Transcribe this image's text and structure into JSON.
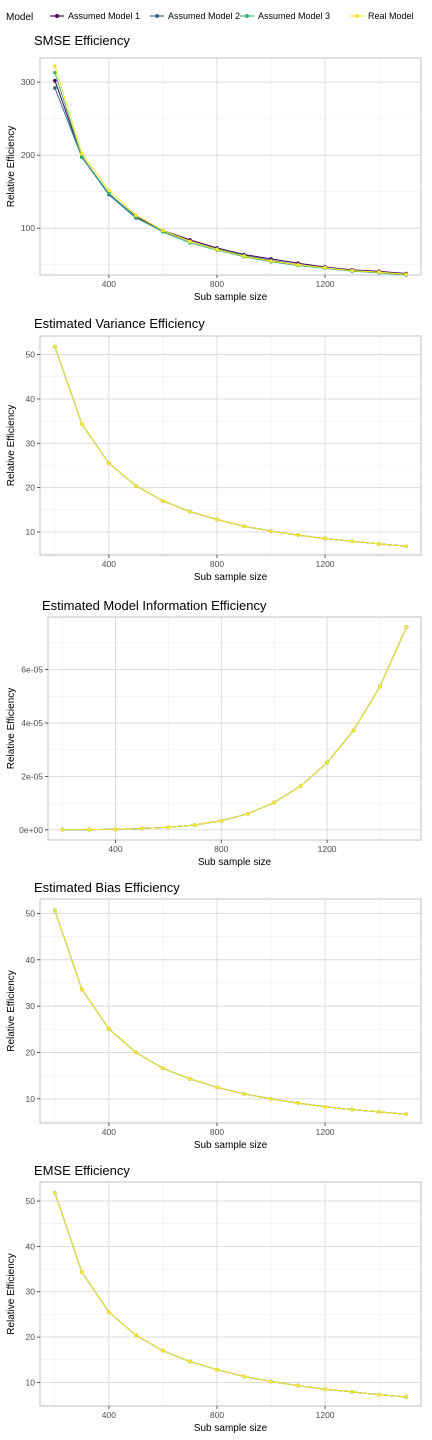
{
  "legend": {
    "title": "Model",
    "entries": [
      {
        "name": "Assumed Model 1",
        "color": "#440154"
      },
      {
        "name": "Assumed Model 2",
        "color": "#31688e"
      },
      {
        "name": "Assumed Model 3",
        "color": "#35b779"
      },
      {
        "name": "Real Model",
        "color": "#fde725"
      }
    ]
  },
  "chart_data": [
    {
      "type": "line",
      "title": "SMSE Efficiency",
      "xlabel": "Sub sample size",
      "ylabel": "Relative Efficiency",
      "xlim": [
        145,
        1555
      ],
      "ylim": [
        36,
        333
      ],
      "xticks": [
        400,
        800,
        1200
      ],
      "xtick_labels": [
        "400",
        "800",
        "1200"
      ],
      "yticks": [
        100,
        200,
        300
      ],
      "ytick_labels": [
        "100",
        "200",
        "300"
      ],
      "x": [
        200,
        300,
        400,
        500,
        600,
        700,
        800,
        900,
        1000,
        1100,
        1200,
        1300,
        1400,
        1500
      ],
      "series": [
        {
          "name": "Assumed Model 1",
          "values": [
            302,
            198,
            147,
            116,
            97,
            84,
            73,
            64,
            58,
            52,
            47,
            43,
            41,
            38
          ]
        },
        {
          "name": "Assumed Model 2",
          "values": [
            292,
            197,
            146,
            114,
            96,
            82,
            72,
            63,
            56,
            50,
            46,
            42,
            40,
            37
          ]
        },
        {
          "name": "Assumed Model 3",
          "values": [
            313,
            197,
            148,
            115,
            95,
            80,
            70,
            61,
            54,
            49,
            45,
            41,
            39,
            36
          ]
        },
        {
          "name": "Real Model",
          "values": [
            322,
            202,
            152,
            118,
            97,
            82,
            71,
            62,
            55,
            50,
            46,
            42,
            40,
            37
          ]
        }
      ]
    },
    {
      "type": "line",
      "title": "Estimated Variance Efficiency",
      "xlabel": "Sub sample size",
      "ylabel": "Relative Efficiency",
      "xlim": [
        145,
        1555
      ],
      "ylim": [
        4.8,
        54.2
      ],
      "xticks": [
        400,
        800,
        1200
      ],
      "xtick_labels": [
        "400",
        "800",
        "1200"
      ],
      "yticks": [
        10,
        20,
        30,
        40,
        50
      ],
      "ytick_labels": [
        "10",
        "20",
        "30",
        "40",
        "50"
      ],
      "x": [
        200,
        300,
        400,
        500,
        600,
        700,
        800,
        900,
        1000,
        1100,
        1200,
        1300,
        1400,
        1500
      ],
      "series": [
        {
          "name": "Assumed Model 1",
          "values": [
            51.8,
            34.3,
            25.5,
            20.4,
            17.0,
            14.6,
            12.8,
            11.3,
            10.2,
            9.3,
            8.5,
            7.9,
            7.3,
            6.8
          ]
        },
        {
          "name": "Assumed Model 2",
          "values": [
            51.8,
            34.3,
            25.5,
            20.4,
            17.0,
            14.6,
            12.8,
            11.3,
            10.2,
            9.3,
            8.5,
            7.9,
            7.3,
            6.8
          ]
        },
        {
          "name": "Assumed Model 3",
          "values": [
            51.8,
            34.3,
            25.5,
            20.4,
            17.0,
            14.6,
            12.8,
            11.3,
            10.2,
            9.3,
            8.5,
            7.9,
            7.3,
            6.8
          ]
        },
        {
          "name": "Real Model",
          "values": [
            51.8,
            34.3,
            25.5,
            20.4,
            17.0,
            14.6,
            12.8,
            11.3,
            10.2,
            9.3,
            8.5,
            7.9,
            7.3,
            6.8
          ]
        }
      ]
    },
    {
      "type": "line",
      "title": "Estimated Model Information Efficiency",
      "xlabel": "Sub sample size",
      "ylabel": "Relative Efficiency",
      "xlim": [
        145,
        1555
      ],
      "ylim": [
        -3.8e-06,
        7.97e-05
      ],
      "xticks": [
        400,
        800,
        1200
      ],
      "xtick_labels": [
        "400",
        "800",
        "1200"
      ],
      "yticks": [
        0,
        2e-05,
        4e-05,
        6e-05
      ],
      "ytick_labels": [
        "0e+00",
        "2e-05",
        "4e-05",
        "6e-05"
      ],
      "x": [
        200,
        300,
        400,
        500,
        600,
        700,
        800,
        900,
        1000,
        1100,
        1200,
        1300,
        1400,
        1500
      ],
      "series": [
        {
          "name": "Assumed Model 1",
          "values": [
            1e-07,
            1e-07,
            2e-07,
            5e-07,
            1e-06,
            1.8e-06,
            3.4e-06,
            6e-06,
            1.02e-05,
            1.64e-05,
            2.52e-05,
            3.72e-05,
            5.37e-05,
            7.6e-05
          ]
        },
        {
          "name": "Assumed Model 2",
          "values": [
            1e-07,
            1e-07,
            2e-07,
            5e-07,
            1e-06,
            1.8e-06,
            3.4e-06,
            6e-06,
            1.02e-05,
            1.64e-05,
            2.52e-05,
            3.72e-05,
            5.37e-05,
            7.6e-05
          ]
        },
        {
          "name": "Assumed Model 3",
          "values": [
            1e-07,
            1e-07,
            2e-07,
            5e-07,
            1e-06,
            1.8e-06,
            3.4e-06,
            6e-06,
            1.02e-05,
            1.64e-05,
            2.52e-05,
            3.72e-05,
            5.37e-05,
            7.6e-05
          ]
        },
        {
          "name": "Real Model",
          "values": [
            1e-07,
            1e-07,
            2e-07,
            5e-07,
            1e-06,
            1.8e-06,
            3.4e-06,
            6e-06,
            1.02e-05,
            1.64e-05,
            2.52e-05,
            3.72e-05,
            5.37e-05,
            7.6e-05
          ]
        }
      ]
    },
    {
      "type": "line",
      "title": "Estimated Bias Efficiency",
      "xlabel": "Sub sample size",
      "ylabel": "Relative Efficiency",
      "xlim": [
        145,
        1555
      ],
      "ylim": [
        4.8,
        53.1
      ],
      "xticks": [
        400,
        800,
        1200
      ],
      "xtick_labels": [
        "400",
        "800",
        "1200"
      ],
      "yticks": [
        10,
        20,
        30,
        40,
        50
      ],
      "ytick_labels": [
        "10",
        "20",
        "30",
        "40",
        "50"
      ],
      "x": [
        200,
        300,
        400,
        500,
        600,
        700,
        800,
        900,
        1000,
        1100,
        1200,
        1300,
        1400,
        1500
      ],
      "series": [
        {
          "name": "Assumed Model 1",
          "values": [
            50.6,
            33.6,
            25.1,
            20.0,
            16.6,
            14.3,
            12.5,
            11.1,
            10.0,
            9.1,
            8.3,
            7.7,
            7.2,
            6.7
          ]
        },
        {
          "name": "Assumed Model 2",
          "values": [
            50.6,
            33.6,
            25.1,
            20.0,
            16.6,
            14.3,
            12.5,
            11.1,
            10.0,
            9.1,
            8.3,
            7.7,
            7.2,
            6.7
          ]
        },
        {
          "name": "Assumed Model 3",
          "values": [
            50.6,
            33.6,
            25.1,
            20.0,
            16.6,
            14.3,
            12.5,
            11.1,
            10.0,
            9.1,
            8.3,
            7.7,
            7.2,
            6.7
          ]
        },
        {
          "name": "Real Model",
          "values": [
            50.6,
            33.6,
            25.1,
            20.0,
            16.6,
            14.3,
            12.5,
            11.1,
            10.0,
            9.1,
            8.3,
            7.7,
            7.2,
            6.7
          ]
        }
      ]
    },
    {
      "type": "line",
      "title": "EMSE Efficiency",
      "xlabel": "Sub sample size",
      "ylabel": "Relative Efficiency",
      "xlim": [
        145,
        1555
      ],
      "ylim": [
        4.8,
        54.2
      ],
      "xticks": [
        400,
        800,
        1200
      ],
      "xtick_labels": [
        "400",
        "800",
        "1200"
      ],
      "yticks": [
        10,
        20,
        30,
        40,
        50
      ],
      "ytick_labels": [
        "10",
        "20",
        "30",
        "40",
        "50"
      ],
      "x": [
        200,
        300,
        400,
        500,
        600,
        700,
        800,
        900,
        1000,
        1100,
        1200,
        1300,
        1400,
        1500
      ],
      "series": [
        {
          "name": "Assumed Model 1",
          "values": [
            51.8,
            34.3,
            25.5,
            20.4,
            17.0,
            14.6,
            12.8,
            11.3,
            10.2,
            9.3,
            8.5,
            7.9,
            7.3,
            6.8
          ]
        },
        {
          "name": "Assumed Model 2",
          "values": [
            51.8,
            34.3,
            25.5,
            20.4,
            17.0,
            14.6,
            12.8,
            11.3,
            10.2,
            9.3,
            8.5,
            7.9,
            7.3,
            6.8
          ]
        },
        {
          "name": "Assumed Model 3",
          "values": [
            51.8,
            34.3,
            25.5,
            20.4,
            17.0,
            14.6,
            12.8,
            11.3,
            10.2,
            9.3,
            8.5,
            7.9,
            7.3,
            6.8
          ]
        },
        {
          "name": "Real Model",
          "values": [
            51.8,
            34.3,
            25.5,
            20.4,
            17.0,
            14.6,
            12.8,
            11.3,
            10.2,
            9.3,
            8.5,
            7.9,
            7.3,
            6.8
          ]
        }
      ]
    }
  ]
}
